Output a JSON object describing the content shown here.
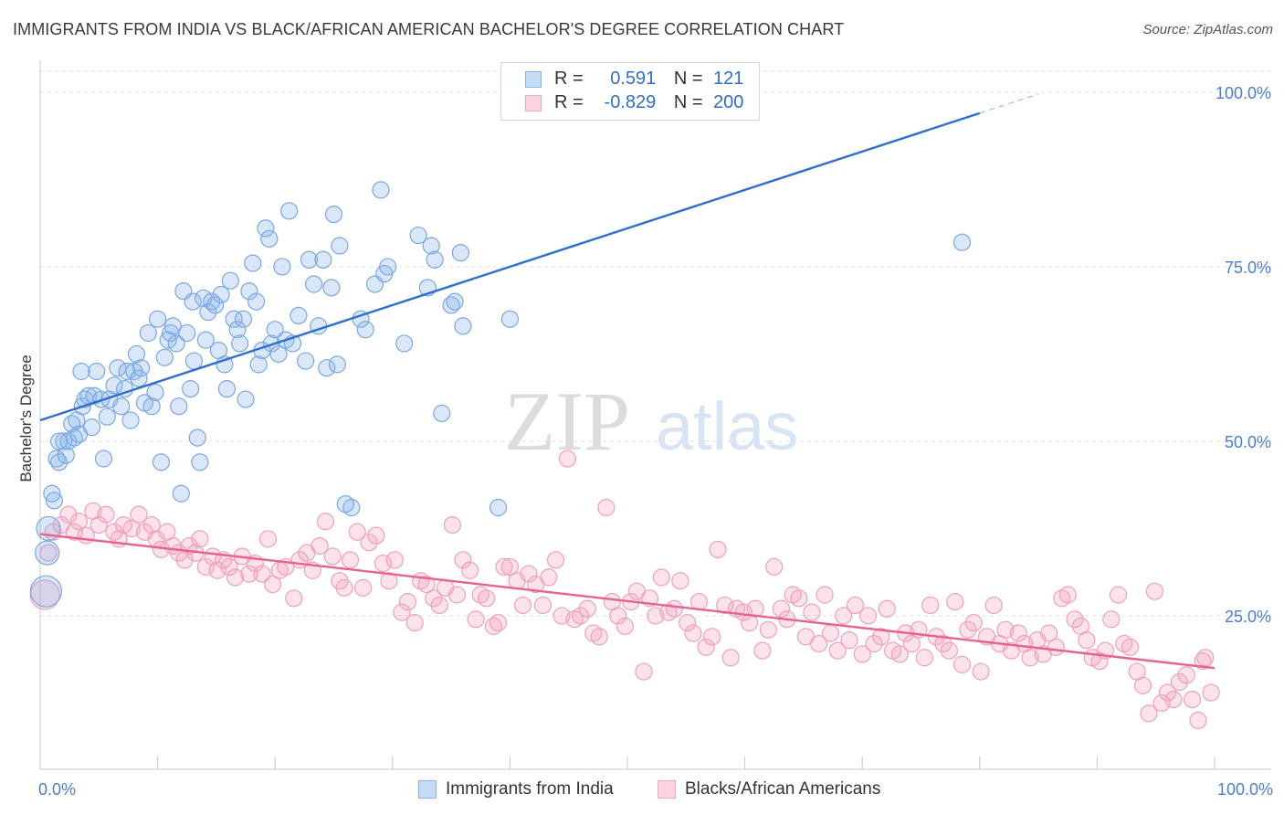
{
  "title": "IMMIGRANTS FROM INDIA VS BLACK/AFRICAN AMERICAN BACHELOR'S DEGREE CORRELATION CHART",
  "source": "Source: ZipAtlas.com",
  "watermark": {
    "zip": "ZIP",
    "atlas": "atlas"
  },
  "legend": {
    "series1": {
      "r_label": "R =",
      "r_value": "0.591",
      "n_label": "N =",
      "n_value": "121",
      "color": "#8ab4e8"
    },
    "series2": {
      "r_label": "R =",
      "r_value": "-0.829",
      "n_label": "N =",
      "n_value": "200",
      "color": "#f4a6c0"
    }
  },
  "bottom_legend": {
    "series1": "Immigrants from India",
    "series2": "Blacks/African Americans"
  },
  "chart_data": {
    "type": "scatter",
    "ylabel": "Bachelor's Degree",
    "xlabel": "",
    "x_tick_labels": [
      "0.0%",
      "100.0%"
    ],
    "y_tick_labels": [
      "25.0%",
      "50.0%",
      "75.0%",
      "100.0%"
    ],
    "xlim": [
      0,
      100
    ],
    "ylim": [
      3,
      103
    ],
    "grid": true,
    "series": [
      {
        "name": "Immigrants from India",
        "color": "#4a8ad8",
        "trend": {
          "x0": 0,
          "y0": 53.0,
          "x1": 80,
          "y1": 97.0,
          "dash_to_x": 85
        },
        "points": [
          [
            0.5,
            28.5
          ],
          [
            0.6,
            34
          ],
          [
            0.7,
            37.5
          ],
          [
            1.2,
            41.5
          ],
          [
            1.4,
            47.5
          ],
          [
            1.6,
            47
          ],
          [
            2.0,
            50
          ],
          [
            2.2,
            48
          ],
          [
            2.4,
            50
          ],
          [
            2.7,
            52.5
          ],
          [
            2.9,
            50.5
          ],
          [
            3.1,
            53
          ],
          [
            3.3,
            51
          ],
          [
            3.6,
            55
          ],
          [
            3.8,
            56
          ],
          [
            4.1,
            56.5
          ],
          [
            4.4,
            52
          ],
          [
            4.6,
            56.5
          ],
          [
            4.8,
            60
          ],
          [
            5.2,
            56
          ],
          [
            5.4,
            47.5
          ],
          [
            5.7,
            53.5
          ],
          [
            5.9,
            56
          ],
          [
            6.3,
            58
          ],
          [
            6.6,
            60.5
          ],
          [
            6.9,
            55
          ],
          [
            7.2,
            57.5
          ],
          [
            7.4,
            60
          ],
          [
            7.7,
            53
          ],
          [
            8.0,
            60
          ],
          [
            8.2,
            62.5
          ],
          [
            8.4,
            59
          ],
          [
            8.6,
            60.5
          ],
          [
            8.9,
            55.5
          ],
          [
            9.2,
            65.5
          ],
          [
            9.5,
            55
          ],
          [
            9.8,
            57
          ],
          [
            10.0,
            67.5
          ],
          [
            10.3,
            47
          ],
          [
            10.6,
            62
          ],
          [
            10.9,
            64.5
          ],
          [
            11.1,
            65.5
          ],
          [
            11.3,
            66.5
          ],
          [
            11.6,
            64
          ],
          [
            11.8,
            55
          ],
          [
            12.2,
            71.5
          ],
          [
            12.5,
            65.5
          ],
          [
            12.8,
            57.5
          ],
          [
            13.0,
            70
          ],
          [
            13.1,
            61.5
          ],
          [
            13.4,
            50.5
          ],
          [
            13.6,
            47
          ],
          [
            13.9,
            70.5
          ],
          [
            14.1,
            64.5
          ],
          [
            14.3,
            68.5
          ],
          [
            14.6,
            70
          ],
          [
            14.9,
            69.5
          ],
          [
            15.2,
            63
          ],
          [
            15.4,
            71
          ],
          [
            15.7,
            61
          ],
          [
            15.9,
            57.5
          ],
          [
            16.2,
            73
          ],
          [
            16.5,
            67.5
          ],
          [
            16.8,
            66
          ],
          [
            17.0,
            64
          ],
          [
            17.3,
            67.5
          ],
          [
            17.5,
            56
          ],
          [
            17.8,
            71.5
          ],
          [
            18.1,
            75.5
          ],
          [
            18.4,
            70
          ],
          [
            18.6,
            61
          ],
          [
            18.9,
            63
          ],
          [
            19.2,
            80.5
          ],
          [
            19.5,
            79
          ],
          [
            19.7,
            64
          ],
          [
            20.0,
            66
          ],
          [
            20.3,
            62.5
          ],
          [
            20.6,
            75
          ],
          [
            20.9,
            64.5
          ],
          [
            21.2,
            83
          ],
          [
            21.5,
            64
          ],
          [
            22.0,
            68
          ],
          [
            22.6,
            61.5
          ],
          [
            22.9,
            76
          ],
          [
            23.3,
            72.5
          ],
          [
            23.7,
            66.5
          ],
          [
            24.1,
            76
          ],
          [
            24.4,
            60.5
          ],
          [
            24.8,
            72
          ],
          [
            25.0,
            82.5
          ],
          [
            25.3,
            61
          ],
          [
            25.5,
            78
          ],
          [
            26.5,
            40.5
          ],
          [
            27.3,
            67.5
          ],
          [
            27.7,
            66
          ],
          [
            28.5,
            72.5
          ],
          [
            29.0,
            86
          ],
          [
            29.3,
            74
          ],
          [
            29.6,
            75
          ],
          [
            31.0,
            64
          ],
          [
            32.2,
            79.5
          ],
          [
            33.0,
            72
          ],
          [
            33.3,
            78
          ],
          [
            33.6,
            76
          ],
          [
            34.2,
            54
          ],
          [
            35.0,
            69.5
          ],
          [
            35.3,
            70
          ],
          [
            35.8,
            77
          ],
          [
            36.0,
            66.5
          ],
          [
            39.0,
            40.5
          ],
          [
            40.0,
            67.5
          ],
          [
            78.5,
            78.5
          ],
          [
            1.0,
            42.5
          ],
          [
            1.6,
            50
          ],
          [
            3.5,
            60
          ],
          [
            12.0,
            42.5
          ],
          [
            26.0,
            41
          ]
        ]
      },
      {
        "name": "Blacks/African Americans",
        "color": "#e8628e",
        "trend": {
          "x0": 0,
          "y0": 36.7,
          "x1": 100,
          "y1": 17.5
        },
        "points": [
          [
            0.4,
            28
          ],
          [
            0.7,
            34
          ],
          [
            1.1,
            37
          ],
          [
            1.8,
            38
          ],
          [
            2.4,
            39.5
          ],
          [
            2.9,
            37
          ],
          [
            3.3,
            38.5
          ],
          [
            3.9,
            36.5
          ],
          [
            4.5,
            40
          ],
          [
            5.0,
            38
          ],
          [
            5.6,
            39.5
          ],
          [
            6.3,
            37
          ],
          [
            6.7,
            36
          ],
          [
            7.1,
            38
          ],
          [
            7.8,
            37.5
          ],
          [
            8.4,
            39.5
          ],
          [
            8.9,
            37
          ],
          [
            9.5,
            38
          ],
          [
            9.9,
            36
          ],
          [
            10.3,
            34.5
          ],
          [
            10.8,
            37
          ],
          [
            11.3,
            35
          ],
          [
            11.8,
            34
          ],
          [
            12.3,
            33
          ],
          [
            12.7,
            35
          ],
          [
            13.2,
            34
          ],
          [
            13.6,
            36
          ],
          [
            14.1,
            32
          ],
          [
            14.7,
            33.5
          ],
          [
            15.1,
            31.5
          ],
          [
            15.6,
            33
          ],
          [
            16.1,
            32
          ],
          [
            16.6,
            30.5
          ],
          [
            17.2,
            33.5
          ],
          [
            17.8,
            31
          ],
          [
            18.3,
            32.5
          ],
          [
            18.9,
            31
          ],
          [
            19.4,
            36
          ],
          [
            19.8,
            29.5
          ],
          [
            20.4,
            31.5
          ],
          [
            20.9,
            32
          ],
          [
            21.6,
            27.5
          ],
          [
            22.1,
            33
          ],
          [
            22.7,
            34
          ],
          [
            23.2,
            31.5
          ],
          [
            23.8,
            35
          ],
          [
            24.3,
            38.5
          ],
          [
            24.9,
            33.5
          ],
          [
            25.5,
            30
          ],
          [
            25.9,
            29
          ],
          [
            26.4,
            33
          ],
          [
            27.0,
            37
          ],
          [
            27.5,
            29
          ],
          [
            28.0,
            35.5
          ],
          [
            28.6,
            36.5
          ],
          [
            29.2,
            32.5
          ],
          [
            29.7,
            30
          ],
          [
            30.2,
            33
          ],
          [
            30.8,
            25.5
          ],
          [
            31.3,
            27
          ],
          [
            31.9,
            24
          ],
          [
            32.4,
            30
          ],
          [
            32.9,
            29.5
          ],
          [
            33.5,
            27.5
          ],
          [
            34.0,
            26.5
          ],
          [
            34.5,
            29
          ],
          [
            35.1,
            38
          ],
          [
            35.5,
            28
          ],
          [
            36.0,
            33
          ],
          [
            36.6,
            31.5
          ],
          [
            37.1,
            24.5
          ],
          [
            37.5,
            28
          ],
          [
            38.0,
            27.5
          ],
          [
            38.6,
            23.5
          ],
          [
            39.0,
            24
          ],
          [
            39.5,
            32
          ],
          [
            40.0,
            32
          ],
          [
            40.6,
            30
          ],
          [
            41.1,
            26.5
          ],
          [
            41.6,
            31
          ],
          [
            42.2,
            29.5
          ],
          [
            42.8,
            26.5
          ],
          [
            43.3,
            30.5
          ],
          [
            43.9,
            33
          ],
          [
            44.4,
            25
          ],
          [
            44.9,
            47.5
          ],
          [
            45.5,
            24.5
          ],
          [
            46.0,
            25
          ],
          [
            46.6,
            26
          ],
          [
            47.1,
            22.5
          ],
          [
            47.6,
            22
          ],
          [
            48.2,
            40.5
          ],
          [
            48.7,
            27
          ],
          [
            49.2,
            25
          ],
          [
            49.8,
            23.5
          ],
          [
            50.3,
            27
          ],
          [
            50.8,
            28.5
          ],
          [
            51.4,
            17
          ],
          [
            51.9,
            27.5
          ],
          [
            52.4,
            25
          ],
          [
            52.9,
            30.5
          ],
          [
            53.5,
            25.5
          ],
          [
            54.0,
            26
          ],
          [
            54.5,
            30
          ],
          [
            55.1,
            24
          ],
          [
            55.6,
            22.5
          ],
          [
            56.1,
            27
          ],
          [
            56.7,
            20.5
          ],
          [
            57.2,
            22
          ],
          [
            57.7,
            34.5
          ],
          [
            58.3,
            26.5
          ],
          [
            58.8,
            19
          ],
          [
            59.3,
            26
          ],
          [
            59.9,
            25.5
          ],
          [
            60.4,
            24
          ],
          [
            60.9,
            26
          ],
          [
            61.5,
            20
          ],
          [
            62.0,
            23
          ],
          [
            62.5,
            32
          ],
          [
            63.1,
            26
          ],
          [
            63.6,
            24.5
          ],
          [
            64.1,
            28
          ],
          [
            64.6,
            27.5
          ],
          [
            65.2,
            22
          ],
          [
            65.7,
            25.5
          ],
          [
            66.3,
            21
          ],
          [
            66.8,
            28
          ],
          [
            67.3,
            22.5
          ],
          [
            67.9,
            20
          ],
          [
            68.4,
            25
          ],
          [
            68.9,
            21.5
          ],
          [
            69.4,
            26.5
          ],
          [
            70.0,
            19.5
          ],
          [
            70.5,
            25
          ],
          [
            71.0,
            21
          ],
          [
            71.6,
            22
          ],
          [
            72.1,
            26
          ],
          [
            72.6,
            20
          ],
          [
            73.2,
            19.5
          ],
          [
            73.7,
            22.5
          ],
          [
            74.2,
            21
          ],
          [
            74.8,
            23
          ],
          [
            75.3,
            19
          ],
          [
            75.8,
            26.5
          ],
          [
            76.3,
            22
          ],
          [
            76.9,
            21
          ],
          [
            77.4,
            20
          ],
          [
            77.9,
            27
          ],
          [
            78.5,
            18
          ],
          [
            79.0,
            23
          ],
          [
            79.5,
            24
          ],
          [
            80.1,
            17
          ],
          [
            80.6,
            22
          ],
          [
            81.2,
            26.5
          ],
          [
            81.7,
            21
          ],
          [
            82.2,
            23
          ],
          [
            82.7,
            20
          ],
          [
            83.3,
            22.5
          ],
          [
            83.8,
            21
          ],
          [
            84.3,
            19
          ],
          [
            84.9,
            21.5
          ],
          [
            85.4,
            19.5
          ],
          [
            85.9,
            22.5
          ],
          [
            86.5,
            20.5
          ],
          [
            87.0,
            27.5
          ],
          [
            87.5,
            28
          ],
          [
            88.1,
            24.5
          ],
          [
            88.6,
            23.5
          ],
          [
            89.1,
            21.5
          ],
          [
            89.6,
            19
          ],
          [
            90.2,
            18.5
          ],
          [
            90.7,
            20
          ],
          [
            91.2,
            24.5
          ],
          [
            91.8,
            28
          ],
          [
            92.3,
            21
          ],
          [
            92.8,
            20.5
          ],
          [
            93.4,
            17
          ],
          [
            93.9,
            15
          ],
          [
            94.4,
            11
          ],
          [
            94.9,
            28.5
          ],
          [
            95.5,
            12.5
          ],
          [
            96.0,
            14
          ],
          [
            96.5,
            13
          ],
          [
            97.0,
            15.5
          ],
          [
            97.6,
            16.5
          ],
          [
            98.1,
            13
          ],
          [
            98.6,
            10
          ],
          [
            99.2,
            19
          ],
          [
            99.7,
            14
          ],
          [
            99.0,
            18.5
          ]
        ]
      }
    ]
  }
}
